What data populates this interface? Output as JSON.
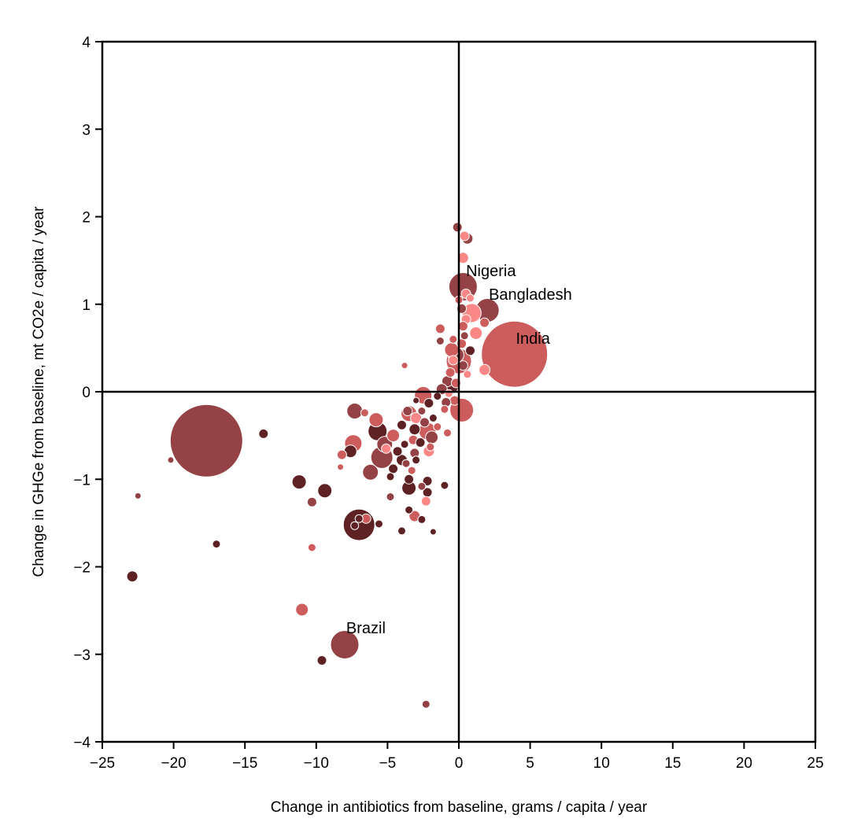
{
  "chart_data": {
    "type": "scatter",
    "title": "",
    "xlabel": "Change in antibiotics from baseline, grams / capita / year",
    "ylabel": "Change in GHGe from baseline, mt CO2e / capita / year",
    "xlim": [
      -25,
      25
    ],
    "ylim": [
      -4,
      4
    ],
    "xticks": [
      -25,
      -20,
      -15,
      -10,
      -5,
      0,
      5,
      10,
      15,
      20,
      25
    ],
    "yticks": [
      -4,
      -3,
      -2,
      -1,
      0,
      1,
      2,
      3,
      4
    ],
    "xtick_labels": [
      "−25",
      "−20",
      "−15",
      "−10",
      "−5",
      "0",
      "5",
      "10",
      "15",
      "20",
      "25"
    ],
    "ytick_labels": [
      "−4",
      "−3",
      "−2",
      "−1",
      "0",
      "1",
      "2",
      "3",
      "4"
    ],
    "grid": false,
    "reference_lines": {
      "x": 0,
      "y": 0
    },
    "colors": {
      "darkest": "#5e2224",
      "dark": "#944245",
      "medium": "#cd5c5c",
      "light": "#fb8787",
      "point_edge": "#ffffff",
      "axes": "#000000"
    },
    "annotations": [
      {
        "text": "India",
        "x": 4.0,
        "y": 0.55
      },
      {
        "text": "Nigeria",
        "x": 0.5,
        "y": 1.32
      },
      {
        "text": "Bangladesh",
        "x": 2.1,
        "y": 1.05
      },
      {
        "text": "Brazil",
        "x": -7.9,
        "y": -2.76
      }
    ],
    "points": [
      {
        "x": 3.9,
        "y": 0.43,
        "s": 42,
        "c": "medium"
      },
      {
        "x": -17.7,
        "y": -0.56,
        "s": 46,
        "c": "dark"
      },
      {
        "x": 0.3,
        "y": 1.2,
        "s": 18,
        "c": "dark"
      },
      {
        "x": 2.0,
        "y": 0.93,
        "s": 15,
        "c": "dark"
      },
      {
        "x": -8.0,
        "y": -2.89,
        "s": 18,
        "c": "dark"
      },
      {
        "x": -7.0,
        "y": -1.52,
        "s": 20,
        "c": "darkest"
      },
      {
        "x": -0.1,
        "y": 1.88,
        "s": 6,
        "c": "dark"
      },
      {
        "x": 0.4,
        "y": 1.78,
        "s": 6,
        "c": "light"
      },
      {
        "x": 0.6,
        "y": 1.75,
        "s": 7,
        "c": "dark"
      },
      {
        "x": 0.3,
        "y": 1.53,
        "s": 7,
        "c": "light"
      },
      {
        "x": 0.5,
        "y": 1.12,
        "s": 6,
        "c": "light"
      },
      {
        "x": 0.8,
        "y": 1.07,
        "s": 5,
        "c": "light"
      },
      {
        "x": 0.0,
        "y": 1.05,
        "s": 5,
        "c": "medium"
      },
      {
        "x": 0.9,
        "y": 0.9,
        "s": 12,
        "c": "light"
      },
      {
        "x": 0.2,
        "y": 0.95,
        "s": 6,
        "c": "dark"
      },
      {
        "x": 0.5,
        "y": 0.83,
        "s": 6,
        "c": "light"
      },
      {
        "x": 1.8,
        "y": 0.79,
        "s": 6,
        "c": "medium"
      },
      {
        "x": 0.3,
        "y": 0.75,
        "s": 6,
        "c": "medium"
      },
      {
        "x": 1.2,
        "y": 0.67,
        "s": 8,
        "c": "light"
      },
      {
        "x": -1.3,
        "y": 0.72,
        "s": 6,
        "c": "medium"
      },
      {
        "x": 0.4,
        "y": 0.64,
        "s": 5,
        "c": "dark"
      },
      {
        "x": -0.4,
        "y": 0.6,
        "s": 5,
        "c": "medium"
      },
      {
        "x": -1.3,
        "y": 0.58,
        "s": 5,
        "c": "dark"
      },
      {
        "x": 0.2,
        "y": 0.55,
        "s": 6,
        "c": "medium"
      },
      {
        "x": -0.5,
        "y": 0.48,
        "s": 9,
        "c": "medium"
      },
      {
        "x": 0.8,
        "y": 0.47,
        "s": 6,
        "c": "darkest"
      },
      {
        "x": -0.2,
        "y": 0.42,
        "s": 10,
        "c": "dark"
      },
      {
        "x": 0.0,
        "y": 0.35,
        "s": 16,
        "c": "medium"
      },
      {
        "x": -0.4,
        "y": 0.36,
        "s": 6,
        "c": "light"
      },
      {
        "x": -3.8,
        "y": 0.3,
        "s": 4,
        "c": "medium"
      },
      {
        "x": 0.3,
        "y": 0.3,
        "s": 6,
        "c": "dark"
      },
      {
        "x": 1.8,
        "y": 0.25,
        "s": 7,
        "c": "light"
      },
      {
        "x": -0.6,
        "y": 0.22,
        "s": 6,
        "c": "medium"
      },
      {
        "x": 0.6,
        "y": 0.2,
        "s": 5,
        "c": "light"
      },
      {
        "x": -0.8,
        "y": 0.12,
        "s": 7,
        "c": "dark"
      },
      {
        "x": -0.2,
        "y": 0.1,
        "s": 6,
        "c": "medium"
      },
      {
        "x": -0.5,
        "y": 0.05,
        "s": 8,
        "c": "darkest"
      },
      {
        "x": -1.2,
        "y": 0.03,
        "s": 7,
        "c": "dark"
      },
      {
        "x": -0.7,
        "y": -0.02,
        "s": 5,
        "c": "light"
      },
      {
        "x": -2.5,
        "y": -0.04,
        "s": 11,
        "c": "medium"
      },
      {
        "x": -1.5,
        "y": -0.05,
        "s": 5,
        "c": "darkest"
      },
      {
        "x": -0.3,
        "y": -0.1,
        "s": 6,
        "c": "medium"
      },
      {
        "x": -0.9,
        "y": -0.12,
        "s": 6,
        "c": "dark"
      },
      {
        "x": -2.1,
        "y": -0.13,
        "s": 6,
        "c": "darkest"
      },
      {
        "x": -3.0,
        "y": -0.1,
        "s": 4,
        "c": "darkest"
      },
      {
        "x": 0.2,
        "y": -0.21,
        "s": 15,
        "c": "medium"
      },
      {
        "x": -1.0,
        "y": -0.2,
        "s": 5,
        "c": "medium"
      },
      {
        "x": -2.6,
        "y": -0.22,
        "s": 5,
        "c": "dark"
      },
      {
        "x": -3.6,
        "y": -0.22,
        "s": 6,
        "c": "dark"
      },
      {
        "x": -7.3,
        "y": -0.22,
        "s": 10,
        "c": "dark"
      },
      {
        "x": -6.6,
        "y": -0.24,
        "s": 5,
        "c": "medium"
      },
      {
        "x": -3.5,
        "y": -0.25,
        "s": 10,
        "c": "medium"
      },
      {
        "x": -1.8,
        "y": -0.3,
        "s": 5,
        "c": "darkest"
      },
      {
        "x": -3.0,
        "y": -0.3,
        "s": 7,
        "c": "light"
      },
      {
        "x": -5.8,
        "y": -0.32,
        "s": 9,
        "c": "medium"
      },
      {
        "x": -2.4,
        "y": -0.35,
        "s": 6,
        "c": "dark"
      },
      {
        "x": -4.0,
        "y": -0.38,
        "s": 6,
        "c": "darkest"
      },
      {
        "x": -1.5,
        "y": -0.4,
        "s": 5,
        "c": "medium"
      },
      {
        "x": -3.1,
        "y": -0.43,
        "s": 7,
        "c": "darkest"
      },
      {
        "x": -2.2,
        "y": -0.45,
        "s": 11,
        "c": "medium"
      },
      {
        "x": -5.7,
        "y": -0.45,
        "s": 12,
        "c": "darkest"
      },
      {
        "x": -13.7,
        "y": -0.48,
        "s": 6,
        "c": "darkest"
      },
      {
        "x": -0.8,
        "y": -0.47,
        "s": 5,
        "c": "medium"
      },
      {
        "x": -4.6,
        "y": -0.5,
        "s": 8,
        "c": "medium"
      },
      {
        "x": -1.9,
        "y": -0.52,
        "s": 8,
        "c": "dark"
      },
      {
        "x": -3.2,
        "y": -0.55,
        "s": 6,
        "c": "medium"
      },
      {
        "x": -2.7,
        "y": -0.58,
        "s": 6,
        "c": "darkest"
      },
      {
        "x": -7.4,
        "y": -0.59,
        "s": 11,
        "c": "medium"
      },
      {
        "x": -5.2,
        "y": -0.6,
        "s": 10,
        "c": "dark"
      },
      {
        "x": -3.8,
        "y": -0.6,
        "s": 5,
        "c": "darkest"
      },
      {
        "x": -2.0,
        "y": -0.63,
        "s": 5,
        "c": "medium"
      },
      {
        "x": -5.1,
        "y": -0.65,
        "s": 6,
        "c": "light"
      },
      {
        "x": -4.3,
        "y": -0.68,
        "s": 6,
        "c": "darkest"
      },
      {
        "x": -2.1,
        "y": -0.68,
        "s": 7,
        "c": "light"
      },
      {
        "x": -7.6,
        "y": -0.68,
        "s": 8,
        "c": "darkest"
      },
      {
        "x": -3.1,
        "y": -0.7,
        "s": 6,
        "c": "dark"
      },
      {
        "x": -8.2,
        "y": -0.72,
        "s": 6,
        "c": "medium"
      },
      {
        "x": -5.4,
        "y": -0.75,
        "s": 14,
        "c": "dark"
      },
      {
        "x": -4.0,
        "y": -0.78,
        "s": 7,
        "c": "darkest"
      },
      {
        "x": -3.0,
        "y": -0.78,
        "s": 5,
        "c": "darkest"
      },
      {
        "x": -20.2,
        "y": -0.78,
        "s": 4,
        "c": "dark"
      },
      {
        "x": -3.7,
        "y": -0.82,
        "s": 5,
        "c": "dark"
      },
      {
        "x": -8.3,
        "y": -0.86,
        "s": 4,
        "c": "medium"
      },
      {
        "x": -4.6,
        "y": -0.88,
        "s": 6,
        "c": "darkest"
      },
      {
        "x": -3.3,
        "y": -0.9,
        "s": 5,
        "c": "medium"
      },
      {
        "x": -6.2,
        "y": -0.92,
        "s": 10,
        "c": "dark"
      },
      {
        "x": -4.8,
        "y": -0.97,
        "s": 5,
        "c": "darkest"
      },
      {
        "x": -3.5,
        "y": -1.0,
        "s": 6,
        "c": "darkest"
      },
      {
        "x": -2.2,
        "y": -1.02,
        "s": 6,
        "c": "darkest"
      },
      {
        "x": -11.2,
        "y": -1.03,
        "s": 9,
        "c": "darkest"
      },
      {
        "x": -1.0,
        "y": -1.07,
        "s": 5,
        "c": "darkest"
      },
      {
        "x": -2.6,
        "y": -1.08,
        "s": 5,
        "c": "dark"
      },
      {
        "x": -3.5,
        "y": -1.1,
        "s": 9,
        "c": "darkest"
      },
      {
        "x": -9.4,
        "y": -1.13,
        "s": 9,
        "c": "darkest"
      },
      {
        "x": -2.2,
        "y": -1.15,
        "s": 6,
        "c": "darkest"
      },
      {
        "x": -4.8,
        "y": -1.2,
        "s": 5,
        "c": "dark"
      },
      {
        "x": -22.5,
        "y": -1.19,
        "s": 4,
        "c": "dark"
      },
      {
        "x": -2.3,
        "y": -1.25,
        "s": 6,
        "c": "light"
      },
      {
        "x": -10.3,
        "y": -1.26,
        "s": 6,
        "c": "dark"
      },
      {
        "x": -3.5,
        "y": -1.35,
        "s": 5,
        "c": "darkest"
      },
      {
        "x": -3.1,
        "y": -1.42,
        "s": 7,
        "c": "medium"
      },
      {
        "x": -6.5,
        "y": -1.45,
        "s": 6,
        "c": "medium"
      },
      {
        "x": -7.0,
        "y": -1.45,
        "s": 5,
        "c": "darkest"
      },
      {
        "x": -2.6,
        "y": -1.46,
        "s": 5,
        "c": "darkest"
      },
      {
        "x": -5.6,
        "y": -1.51,
        "s": 5,
        "c": "darkest"
      },
      {
        "x": -7.3,
        "y": -1.53,
        "s": 5,
        "c": "darkest"
      },
      {
        "x": -4.0,
        "y": -1.59,
        "s": 5,
        "c": "darkest"
      },
      {
        "x": -1.8,
        "y": -1.6,
        "s": 4,
        "c": "darkest"
      },
      {
        "x": -17.0,
        "y": -1.74,
        "s": 5,
        "c": "darkest"
      },
      {
        "x": -10.3,
        "y": -1.78,
        "s": 5,
        "c": "medium"
      },
      {
        "x": -22.9,
        "y": -2.11,
        "s": 7,
        "c": "darkest"
      },
      {
        "x": -11.0,
        "y": -2.49,
        "s": 8,
        "c": "medium"
      },
      {
        "x": -9.6,
        "y": -3.07,
        "s": 6,
        "c": "darkest"
      },
      {
        "x": -2.3,
        "y": -3.57,
        "s": 5,
        "c": "dark"
      }
    ]
  }
}
